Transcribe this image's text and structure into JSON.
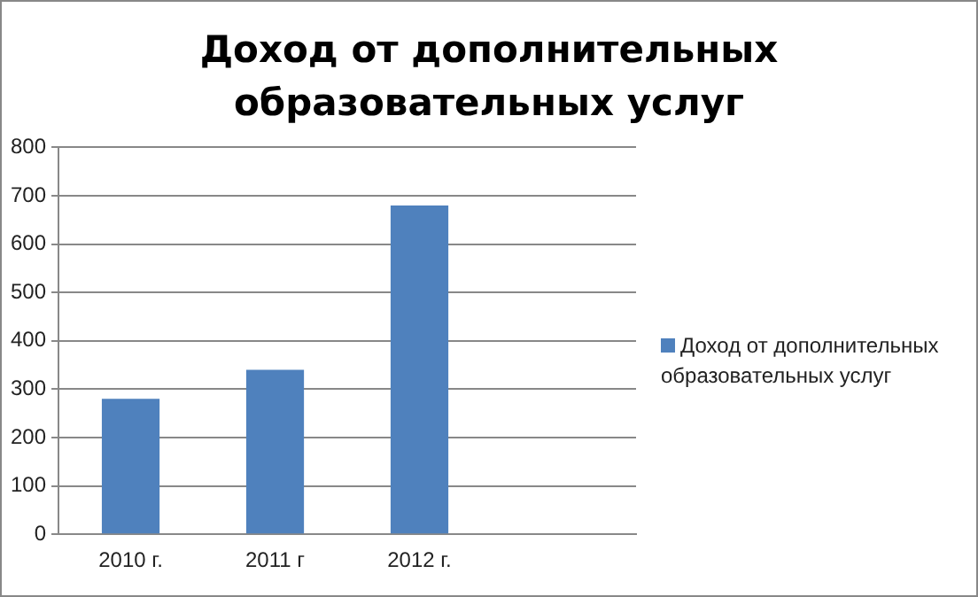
{
  "chart_data": {
    "type": "bar",
    "title": "Доход от дополнительных образовательных услуг",
    "categories": [
      "2010 г.",
      "2011 г",
      "2012 г.",
      null
    ],
    "series": [
      {
        "name": "Доход от дополнительных образовательных услуг",
        "color": "#4f81bd",
        "values": [
          280,
          340,
          680,
          null
        ]
      }
    ],
    "ylim": [
      0,
      800
    ],
    "yticks": [
      0,
      100,
      200,
      300,
      400,
      500,
      600,
      700,
      800
    ],
    "grid": "y",
    "legend": "right"
  }
}
